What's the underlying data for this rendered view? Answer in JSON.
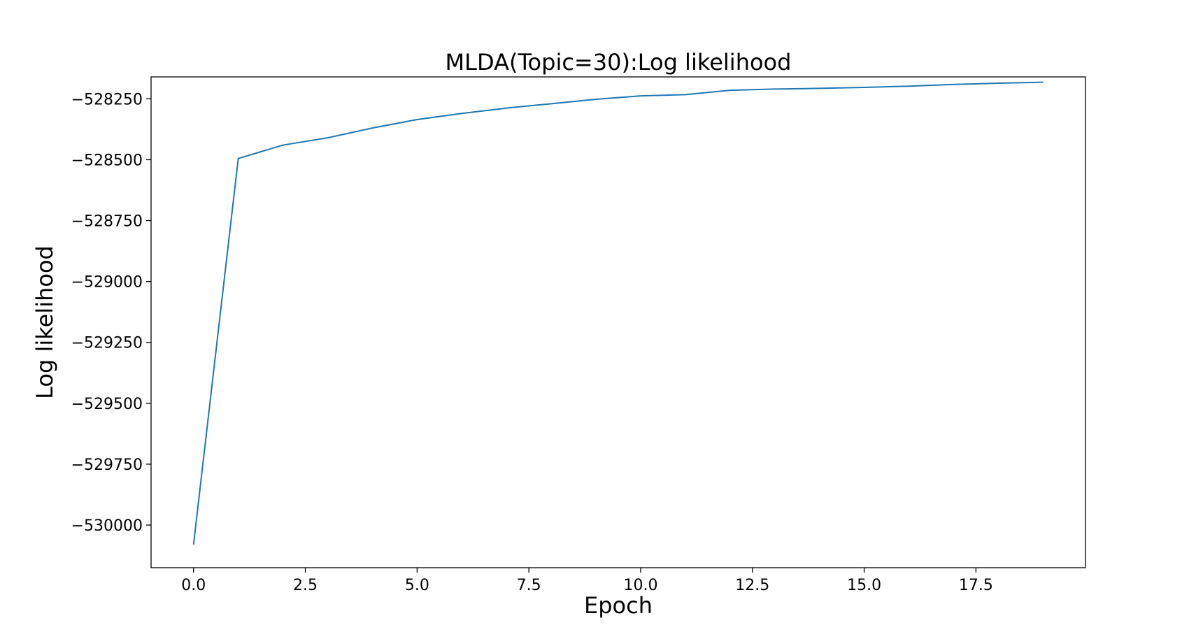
{
  "chart_data": {
    "type": "line",
    "title": "MLDA(Topic=30):Log likelihood",
    "xlabel": "Epoch",
    "ylabel": "Log likelihood",
    "xlim": [
      -0.95,
      19.95
    ],
    "ylim": [
      -530175,
      -528160
    ],
    "x_ticks": [
      0.0,
      2.5,
      5.0,
      7.5,
      10.0,
      12.5,
      15.0,
      17.5
    ],
    "x_tick_labels": [
      "0.0",
      "2.5",
      "5.0",
      "7.5",
      "10.0",
      "12.5",
      "15.0",
      "17.5"
    ],
    "y_ticks": [
      -528250,
      -528500,
      -528750,
      -529000,
      -529250,
      -529500,
      -529750,
      -530000
    ],
    "y_tick_labels": [
      "−528250",
      "−528500",
      "−528750",
      "−529000",
      "−529250",
      "−529500",
      "−529750",
      "−530000"
    ],
    "grid": false,
    "series": [
      {
        "color": "#1f77b4",
        "x": [
          0,
          1,
          2,
          3,
          4,
          5,
          6,
          7,
          8,
          9,
          10,
          11,
          12,
          13,
          14,
          15,
          16,
          17,
          18,
          19
        ],
        "y": [
          -530080,
          -528495,
          -528440,
          -528410,
          -528370,
          -528335,
          -528310,
          -528288,
          -528270,
          -528252,
          -528238,
          -528233,
          -528215,
          -528210,
          -528207,
          -528203,
          -528198,
          -528191,
          -528186,
          -528182
        ]
      }
    ]
  }
}
